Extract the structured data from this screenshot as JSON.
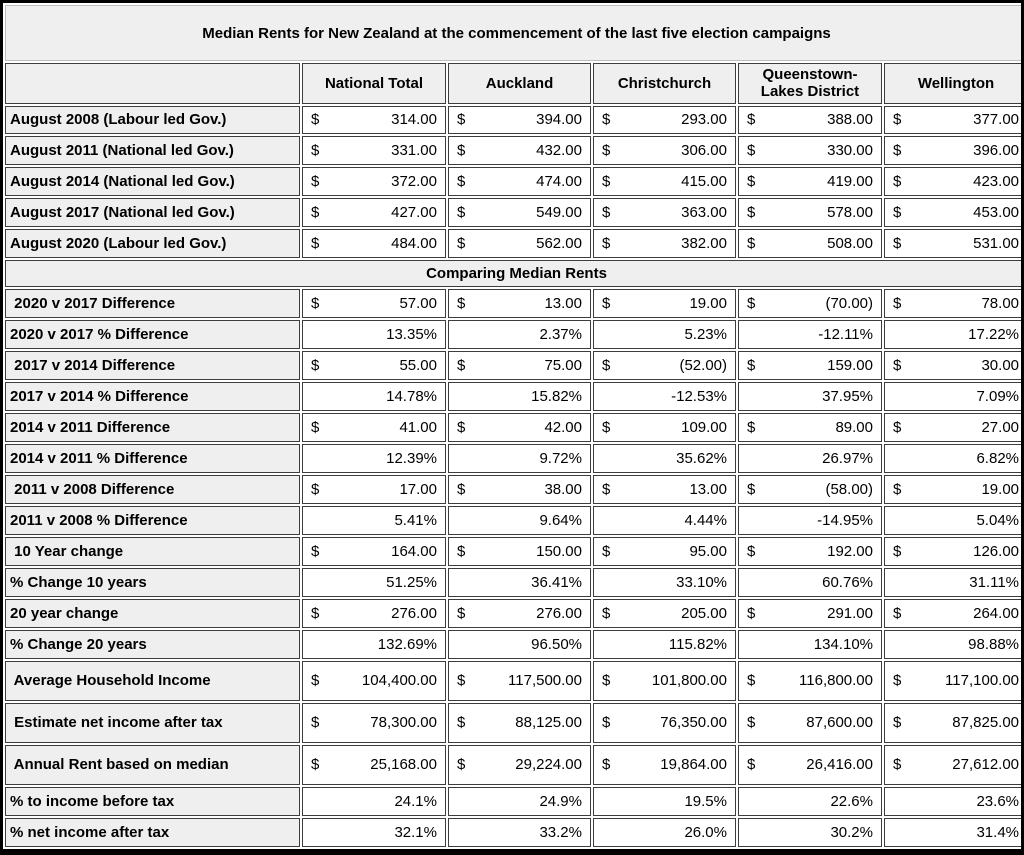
{
  "currency_symbol": "$",
  "colors": {
    "header_bg": "#efefef",
    "cell_bg": "#ffffff",
    "border": "#3d3d3d",
    "outer_border": "#000000",
    "text": "#000000"
  },
  "chart_data": {
    "type": "table",
    "title": "Median Rents for New Zealand at the commencement of the last five election campaigns",
    "columns": [
      "National Total",
      "Auckland",
      "Christchurch",
      "Queenstown-Lakes District",
      "Wellington"
    ],
    "rows": [
      {
        "type": "currency",
        "label": "August 2008 (Labour led Gov.)",
        "values": [
          "314.00",
          "394.00",
          "293.00",
          "388.00",
          "377.00"
        ]
      },
      {
        "type": "currency",
        "label": "August 2011 (National led Gov.)",
        "values": [
          "331.00",
          "432.00",
          "306.00",
          "330.00",
          "396.00"
        ]
      },
      {
        "type": "currency",
        "label": "August 2014 (National led Gov.)",
        "values": [
          "372.00",
          "474.00",
          "415.00",
          "419.00",
          "423.00"
        ]
      },
      {
        "type": "currency",
        "label": "August 2017 (National led Gov.)",
        "values": [
          "427.00",
          "549.00",
          "363.00",
          "578.00",
          "453.00"
        ]
      },
      {
        "type": "currency",
        "label": "August 2020 (Labour led Gov.)",
        "values": [
          "484.00",
          "562.00",
          "382.00",
          "508.00",
          "531.00"
        ]
      },
      {
        "type": "section",
        "label": "Comparing Median Rents"
      },
      {
        "type": "currency",
        "label": " 2020 v 2017 Difference",
        "values": [
          "57.00",
          "13.00",
          "19.00",
          "(70.00)",
          "78.00"
        ]
      },
      {
        "type": "percent",
        "label": "2020 v 2017 % Difference",
        "values": [
          "13.35%",
          "2.37%",
          "5.23%",
          "-12.11%",
          "17.22%"
        ]
      },
      {
        "type": "currency",
        "label": " 2017 v 2014 Difference",
        "values": [
          "55.00",
          "75.00",
          "(52.00)",
          "159.00",
          "30.00"
        ]
      },
      {
        "type": "percent",
        "label": "2017 v 2014 % Difference",
        "values": [
          "14.78%",
          "15.82%",
          "-12.53%",
          "37.95%",
          "7.09%"
        ]
      },
      {
        "type": "currency",
        "label": "2014 v 2011 Difference",
        "values": [
          "41.00",
          "42.00",
          "109.00",
          "89.00",
          "27.00"
        ]
      },
      {
        "type": "percent",
        "label": "2014 v 2011 % Difference",
        "values": [
          "12.39%",
          "9.72%",
          "35.62%",
          "26.97%",
          "6.82%"
        ]
      },
      {
        "type": "currency",
        "label": " 2011 v 2008 Difference",
        "values": [
          "17.00",
          "38.00",
          "13.00",
          "(58.00)",
          "19.00"
        ]
      },
      {
        "type": "percent",
        "label": "2011 v 2008 % Difference",
        "values": [
          "5.41%",
          "9.64%",
          "4.44%",
          "-14.95%",
          "5.04%"
        ]
      },
      {
        "type": "currency",
        "label": " 10 Year change",
        "values": [
          "164.00",
          "150.00",
          "95.00",
          "192.00",
          "126.00"
        ]
      },
      {
        "type": "percent",
        "label": "% Change 10 years",
        "values": [
          "51.25%",
          "36.41%",
          "33.10%",
          "60.76%",
          "31.11%"
        ]
      },
      {
        "type": "currency",
        "label": "20 year change",
        "values": [
          "276.00",
          "276.00",
          "205.00",
          "291.00",
          "264.00"
        ]
      },
      {
        "type": "percent",
        "label": "% Change 20 years",
        "values": [
          "132.69%",
          "96.50%",
          "115.82%",
          "134.10%",
          "98.88%"
        ]
      },
      {
        "type": "currency",
        "label": " Average Household Income",
        "values": [
          "104,400.00",
          "117,500.00",
          "101,800.00",
          "116,800.00",
          "117,100.00"
        ]
      },
      {
        "type": "currency",
        "label": " Estimate net income after tax",
        "values": [
          "78,300.00",
          "88,125.00",
          "76,350.00",
          "87,600.00",
          "87,825.00"
        ]
      },
      {
        "type": "currency",
        "label": " Annual Rent based on median",
        "values": [
          "25,168.00",
          "29,224.00",
          "19,864.00",
          "26,416.00",
          "27,612.00"
        ]
      },
      {
        "type": "percent",
        "label": "% to income before tax",
        "values": [
          "24.1%",
          "24.9%",
          "19.5%",
          "22.6%",
          "23.6%"
        ]
      },
      {
        "type": "percent",
        "label": "% net income after tax",
        "values": [
          "32.1%",
          "33.2%",
          "26.0%",
          "30.2%",
          "31.4%"
        ]
      }
    ]
  }
}
